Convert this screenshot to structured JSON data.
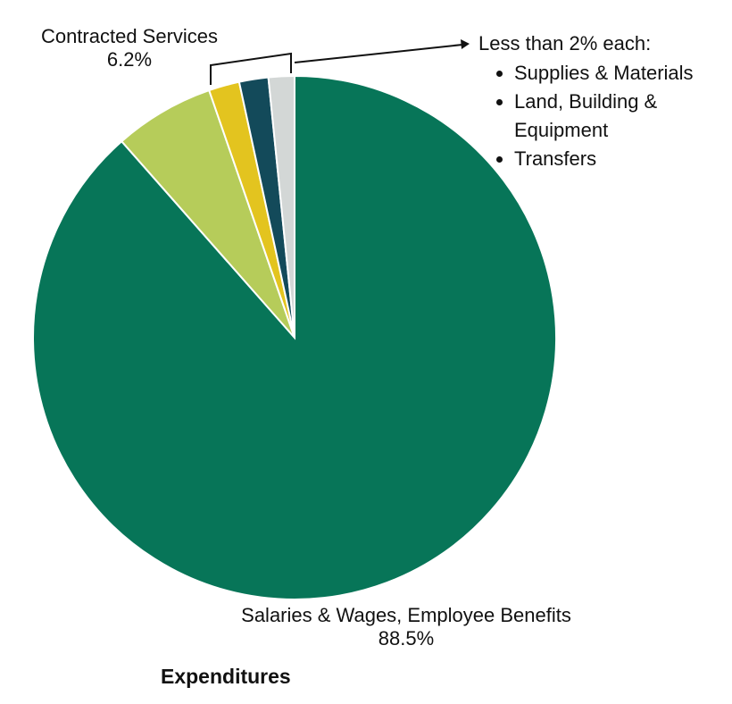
{
  "chart_data": {
    "type": "pie",
    "title": "Expenditures",
    "slices": [
      {
        "label": "Salaries & Wages, Employee Benefits",
        "value_label": "88.5%",
        "value": 88.5,
        "color": "#077558"
      },
      {
        "label": "Contracted Services",
        "value_label": "6.2%",
        "value": 6.2,
        "color": "#b6cc5a"
      },
      {
        "label": "Supplies & Materials",
        "value": 1.9,
        "color": "#e3c41f"
      },
      {
        "label": "Land, Building & Equipment",
        "value": 1.8,
        "color": "#134a5a"
      },
      {
        "label": "Transfers",
        "value": 1.6,
        "color": "#d3d7d6"
      }
    ],
    "small_slices_note": {
      "title": "Less than 2% each:",
      "items": [
        "Supplies & Materials",
        "Land, Building & Equipment",
        "Transfers"
      ]
    }
  }
}
